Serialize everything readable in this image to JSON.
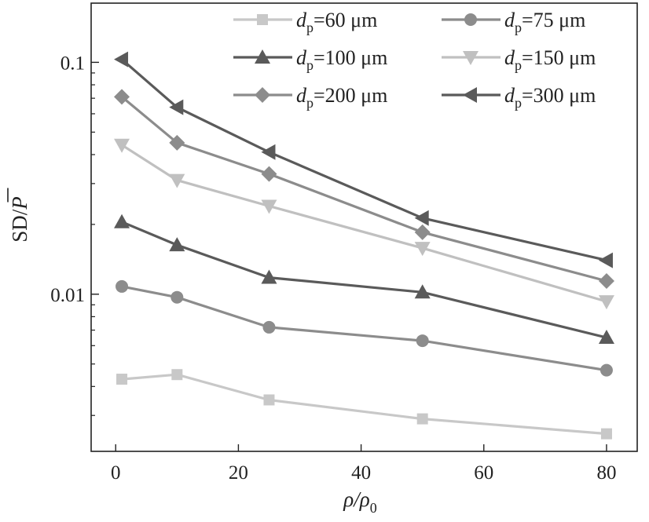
{
  "chart_data": {
    "type": "line",
    "y_scale": "log",
    "x": [
      1,
      10,
      25,
      50,
      80
    ],
    "xlim": [
      -4,
      85
    ],
    "ylim": [
      0.0021,
      0.18
    ],
    "xticks": [
      0,
      20,
      40,
      60,
      80
    ],
    "xtick_labels": [
      "0",
      "20",
      "40",
      "60",
      "80"
    ],
    "yticks": [
      0.01,
      0.1
    ],
    "ytick_labels": [
      "0.01",
      "0.1"
    ],
    "xlabel": {
      "main": "ρ/ρ",
      "sub": "0"
    },
    "ylabel": {
      "main": "SD/",
      "overbar": "P"
    },
    "grid": false,
    "legend_position": "top-right",
    "legend_columns": 2,
    "series": [
      {
        "name": "dp=60 μm",
        "legend": {
          "pre": "d",
          "sub": "p",
          "post": "=60 μm"
        },
        "marker": "square",
        "color": "#c8c8c8",
        "values": [
          0.0043,
          0.0045,
          0.0035,
          0.0029,
          0.0025
        ]
      },
      {
        "name": "dp=75 μm",
        "legend": {
          "pre": "d",
          "sub": "p",
          "post": "=75 μm"
        },
        "marker": "circle",
        "color": "#8c8c8c",
        "values": [
          0.0108,
          0.0097,
          0.0072,
          0.0063,
          0.0047
        ]
      },
      {
        "name": "dp=100 μm",
        "legend": {
          "pre": "d",
          "sub": "p",
          "post": "=100 μm"
        },
        "marker": "triangle-up",
        "color": "#5a5a5a",
        "values": [
          0.0205,
          0.0163,
          0.0118,
          0.0102,
          0.0065
        ]
      },
      {
        "name": "dp=150 μm",
        "legend": {
          "pre": "d",
          "sub": "p",
          "post": "=150 μm"
        },
        "marker": "triangle-down",
        "color": "#c0c0c0",
        "values": [
          0.044,
          0.031,
          0.024,
          0.0158,
          0.0093
        ]
      },
      {
        "name": "dp=200 μm",
        "legend": {
          "pre": "d",
          "sub": "p",
          "post": "=200 μm"
        },
        "marker": "diamond",
        "color": "#8c8c8c",
        "values": [
          0.071,
          0.045,
          0.033,
          0.0185,
          0.0114
        ]
      },
      {
        "name": "dp=300 μm",
        "legend": {
          "pre": "d",
          "sub": "p",
          "post": "=300 μm"
        },
        "marker": "triangle-left",
        "color": "#5a5a5a",
        "values": [
          0.103,
          0.064,
          0.041,
          0.0213,
          0.014
        ]
      }
    ]
  }
}
